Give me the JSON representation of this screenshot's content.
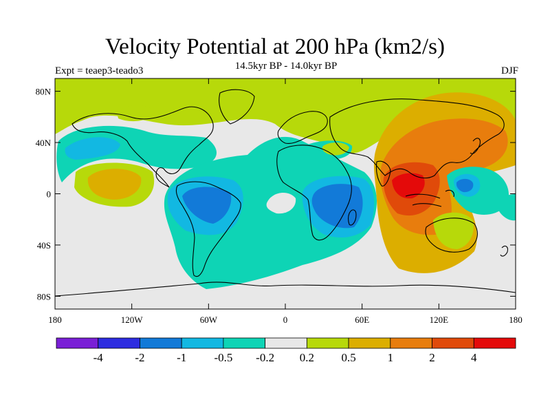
{
  "header": {
    "title": "Velocity Potential at 200 hPa (km2/s)",
    "subtitle": "14.5kyr BP - 14.0kyr BP",
    "left": "Expt = teaep3-teado3",
    "right": "DJF"
  },
  "map": {
    "lon_range": [
      -180,
      180
    ],
    "lat_range": [
      -90,
      90
    ],
    "x_ticks": [
      {
        "lon": -180,
        "label": "180"
      },
      {
        "lon": -120,
        "label": "120W"
      },
      {
        "lon": -60,
        "label": "60W"
      },
      {
        "lon": 0,
        "label": "0"
      },
      {
        "lon": 60,
        "label": "60E"
      },
      {
        "lon": 120,
        "label": "120E"
      },
      {
        "lon": 180,
        "label": "180"
      }
    ],
    "y_ticks": [
      {
        "lat": 80,
        "label": "80N"
      },
      {
        "lat": 40,
        "label": "40N"
      },
      {
        "lat": 0,
        "label": "0"
      },
      {
        "lat": -40,
        "label": "40S"
      },
      {
        "lat": -80,
        "label": "80S"
      }
    ]
  },
  "colorbar": {
    "colors": [
      "#7a1fd6",
      "#2d2ce0",
      "#127ad8",
      "#12b8e2",
      "#0ed4b5",
      "#e8e8e8",
      "#b7d90a",
      "#dcae00",
      "#e87d0d",
      "#e04a0a",
      "#e40a0a"
    ],
    "labels": [
      "-4",
      "-2",
      "-1",
      "-0.5",
      "-0.2",
      "0.2",
      "0.5",
      "1",
      "2",
      "4"
    ]
  },
  "chart_data": {
    "type": "heatmap",
    "title": "Velocity Potential at 200 hPa (km2/s)",
    "subtitle": "14.5kyr BP - 14.0kyr BP",
    "levels": [
      -4,
      -2,
      -1,
      -0.5,
      -0.2,
      0.2,
      0.5,
      1,
      2,
      4
    ],
    "regions": [
      {
        "level": "0.2 to 0.5",
        "lon": [
          -180,
          180
        ],
        "lat": [
          45,
          90
        ],
        "note": "northern band"
      },
      {
        "level": "-0.5 to -0.2",
        "lon": [
          -130,
          -60
        ],
        "lat": [
          20,
          40
        ]
      },
      {
        "level": "-1 to -0.5",
        "lon": [
          -170,
          -120
        ],
        "lat": [
          25,
          40
        ]
      },
      {
        "level": "0.5 to 1",
        "lon": [
          -160,
          -125
        ],
        "lat": [
          -5,
          20
        ]
      },
      {
        "level": "-1 to -0.5",
        "lon": [
          -95,
          -30
        ],
        "lat": [
          -30,
          10
        ]
      },
      {
        "level": "-2 to -1",
        "lon": [
          -80,
          -45
        ],
        "lat": [
          -25,
          5
        ]
      },
      {
        "level": "-0.5 to -0.2",
        "lon": [
          -100,
          30
        ],
        "lat": [
          -65,
          30
        ]
      },
      {
        "level": "-2 to -1",
        "lon": [
          20,
          60
        ],
        "lat": [
          -25,
          5
        ]
      },
      {
        "level": "0.5 to 1",
        "lon": [
          75,
          180
        ],
        "lat": [
          -60,
          75
        ]
      },
      {
        "level": "1 to 2",
        "lon": [
          85,
          165
        ],
        "lat": [
          -30,
          55
        ]
      },
      {
        "level": "2 to 4",
        "lon": [
          80,
          115
        ],
        "lat": [
          -30,
          15
        ]
      },
      {
        "level": "-1 to -0.5",
        "lon": [
          125,
          165
        ],
        "lat": [
          -10,
          15
        ]
      }
    ]
  }
}
